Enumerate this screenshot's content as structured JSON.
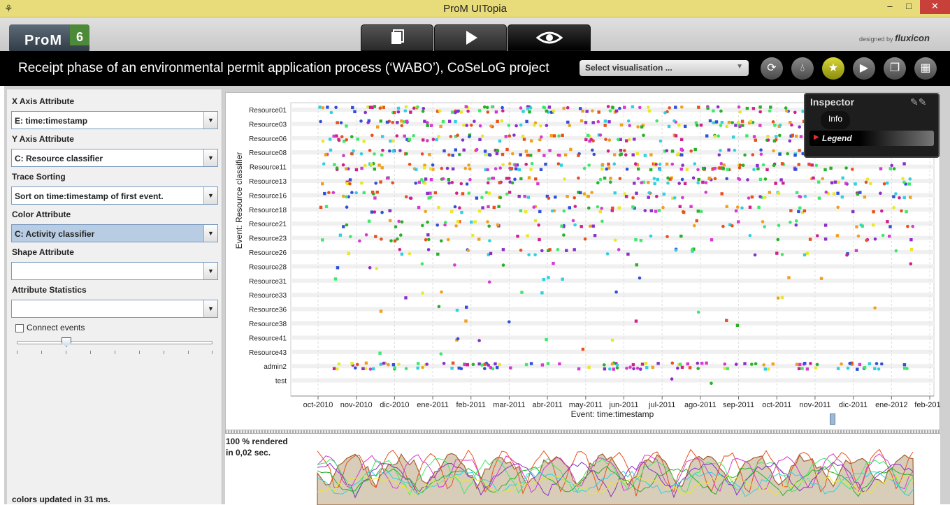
{
  "window": {
    "title": "ProM UITopia",
    "minimize": "–",
    "maximize": "□",
    "close": "✕"
  },
  "logo": {
    "text": "ProM",
    "version": "6"
  },
  "credit": {
    "prefix": "designed by",
    "brand": "fluxicon"
  },
  "header": {
    "heading": "Receipt phase of an environmental permit application process (‘WABO’), CoSeLoG project",
    "select_placeholder": "Select visualisation ..."
  },
  "left": {
    "x_axis": {
      "label": "X Axis Attribute",
      "value": "E: time:timestamp"
    },
    "y_axis": {
      "label": "Y Axis Attribute",
      "value": "C: Resource classifier"
    },
    "trace_sort": {
      "label": "Trace Sorting",
      "value": "Sort on time:timestamp of first event."
    },
    "color": {
      "label": "Color Attribute",
      "value": "C: Activity classifier"
    },
    "shape": {
      "label": "Shape Attribute",
      "value": ""
    },
    "stats": {
      "label": "Attribute Statistics",
      "value": ""
    },
    "connect": {
      "label": "Connect events",
      "checked": false
    },
    "status": "colors updated in 31 ms."
  },
  "inspector": {
    "title": "Inspector",
    "tab_info": "Info",
    "legend": "Legend"
  },
  "lower": {
    "line1": "100 % rendered",
    "line2": "in 0,02 sec."
  },
  "chart_data": {
    "type": "scatter",
    "xlabel": "Event: time:timestamp",
    "ylabel": "Event: Resource classifier",
    "x_ticks": [
      "oct-2010",
      "nov-2010",
      "dic-2010",
      "ene-2011",
      "feb-2011",
      "mar-2011",
      "abr-2011",
      "may-2011",
      "jun-2011",
      "jul-2011",
      "ago-2011",
      "sep-2011",
      "oct-2011",
      "nov-2011",
      "dic-2011",
      "ene-2012",
      "feb-2012"
    ],
    "y_categories": [
      "Resource01",
      "Resource03",
      "Resource06",
      "Resource08",
      "Resource11",
      "Resource13",
      "Resource16",
      "Resource18",
      "Resource21",
      "Resource23",
      "Resource26",
      "Resource28",
      "Resource31",
      "Resource33",
      "Resource36",
      "Resource38",
      "Resource41",
      "Resource43",
      "admin2",
      "test"
    ],
    "grid": true,
    "colors": [
      "#e8501e",
      "#d63ad0",
      "#3ee86a",
      "#e8e82a",
      "#f0a020",
      "#3050d8",
      "#d0208a",
      "#28b028",
      "#30d0e0",
      "#8a30c8"
    ]
  }
}
